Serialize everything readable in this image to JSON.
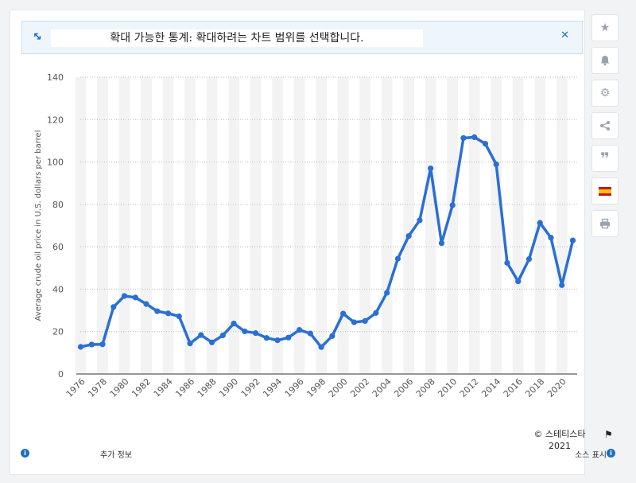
{
  "banner": {
    "message": "확대 가능한 통계: 확대하려는 차트 범위를 선택합니다.",
    "expand_icon": "expand-icon",
    "close_icon": "close-icon"
  },
  "sidebar": {
    "items": [
      "star-icon",
      "bell-icon",
      "gear-icon",
      "share-icon",
      "quote-icon",
      "spain-flag-icon",
      "print-icon"
    ]
  },
  "footer": {
    "credit_line1": "© 스테티스타",
    "credit_line2": "2021",
    "more_info": "추가 정보",
    "source": "소스 표시"
  },
  "colors": {
    "line": "#2a6fd6",
    "band": "#f3f3f3",
    "accent": "#1f6fbf"
  },
  "chart_data": {
    "type": "line",
    "ylabel": "Average crude oil price in U.S. dollars per barrel",
    "ylim": [
      0,
      140
    ],
    "yticks": [
      0,
      20,
      40,
      60,
      80,
      100,
      120,
      140
    ],
    "grid": true,
    "x_tick_labels": [
      "1976",
      "1978",
      "1980",
      "1982",
      "1984",
      "1986",
      "1988",
      "1990",
      "1992",
      "1994",
      "1996",
      "1998",
      "2000",
      "2002",
      "2004",
      "2006",
      "2008",
      "2010",
      "2012",
      "2014",
      "2016",
      "2018",
      "2020"
    ],
    "x": [
      1976,
      1977,
      1978,
      1979,
      1980,
      1981,
      1982,
      1983,
      1984,
      1985,
      1986,
      1987,
      1988,
      1989,
      1990,
      1991,
      1992,
      1993,
      1994,
      1995,
      1996,
      1997,
      1998,
      1999,
      2000,
      2001,
      2002,
      2003,
      2004,
      2005,
      2006,
      2007,
      2008,
      2009,
      2010,
      2011,
      2012,
      2013,
      2014,
      2015,
      2016,
      2017,
      2018,
      2019,
      2020,
      2021
    ],
    "values": [
      12.8,
      13.9,
      14.0,
      31.6,
      36.8,
      36.1,
      33.0,
      29.6,
      28.6,
      27.2,
      14.4,
      18.4,
      14.9,
      18.2,
      23.8,
      20.1,
      19.3,
      17.0,
      15.9,
      17.2,
      20.8,
      19.1,
      12.7,
      17.9,
      28.5,
      24.4,
      25.0,
      28.8,
      38.3,
      54.4,
      65.1,
      72.5,
      97.0,
      61.7,
      79.6,
      111.3,
      111.7,
      108.6,
      98.9,
      52.4,
      43.7,
      54.2,
      71.3,
      64.3,
      41.9,
      63.0
    ]
  }
}
